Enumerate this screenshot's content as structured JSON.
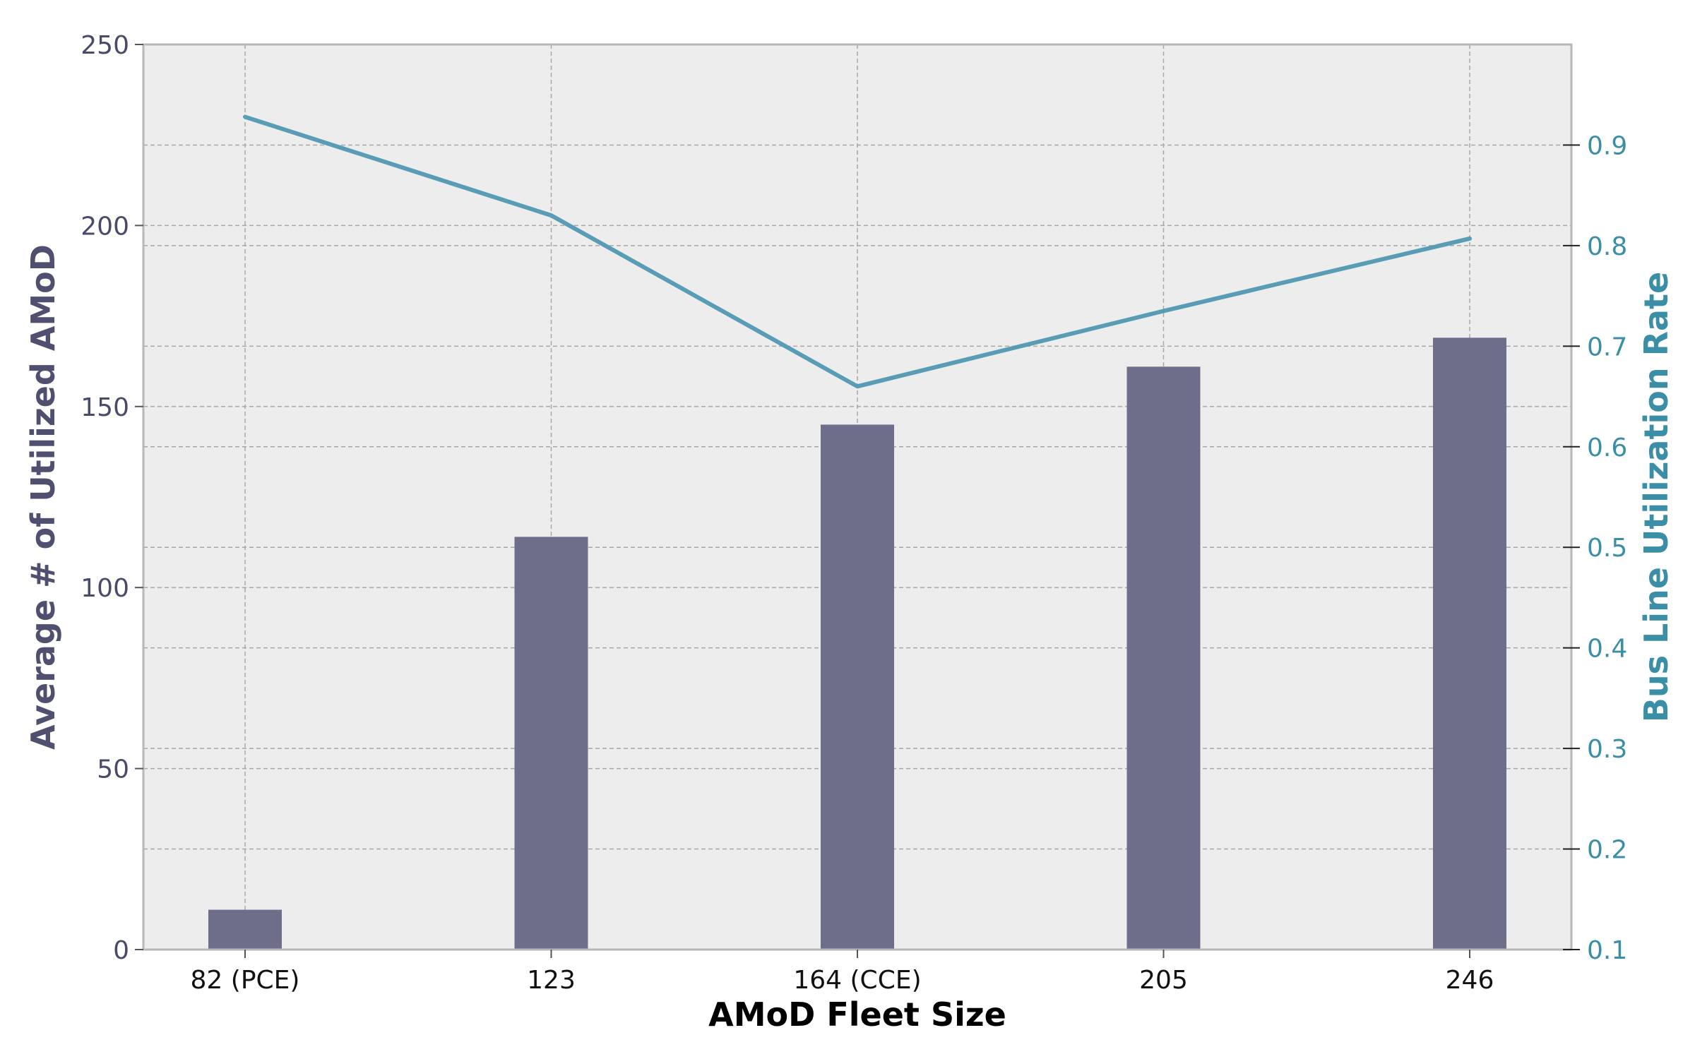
{
  "chart_data": {
    "type": "bar+line",
    "categories": [
      "82 (PCE)",
      "123",
      "164 (CCE)",
      "205",
      "246"
    ],
    "xlabel": "AMoD Fleet Size",
    "ylabel_left": "Average # of Utilized AMoD",
    "ylabel_right": "Bus Line Utilization Rate",
    "ylim_left": [
      0,
      250
    ],
    "ylim_right": [
      0.1,
      1.0
    ],
    "yticks_left": [
      0,
      50,
      100,
      150,
      200,
      250
    ],
    "yticks_right": [
      0.1,
      0.2,
      0.3,
      0.4,
      0.5,
      0.6,
      0.7,
      0.8,
      0.9
    ],
    "grid": true,
    "series": [
      {
        "type": "bar",
        "axis": "left",
        "color": "#6e6e8a",
        "values": [
          11,
          114,
          145,
          161,
          169
        ]
      },
      {
        "type": "line",
        "axis": "right",
        "color": "#589db5",
        "values": [
          0.928,
          0.83,
          0.66,
          0.735,
          0.807
        ]
      }
    ]
  }
}
